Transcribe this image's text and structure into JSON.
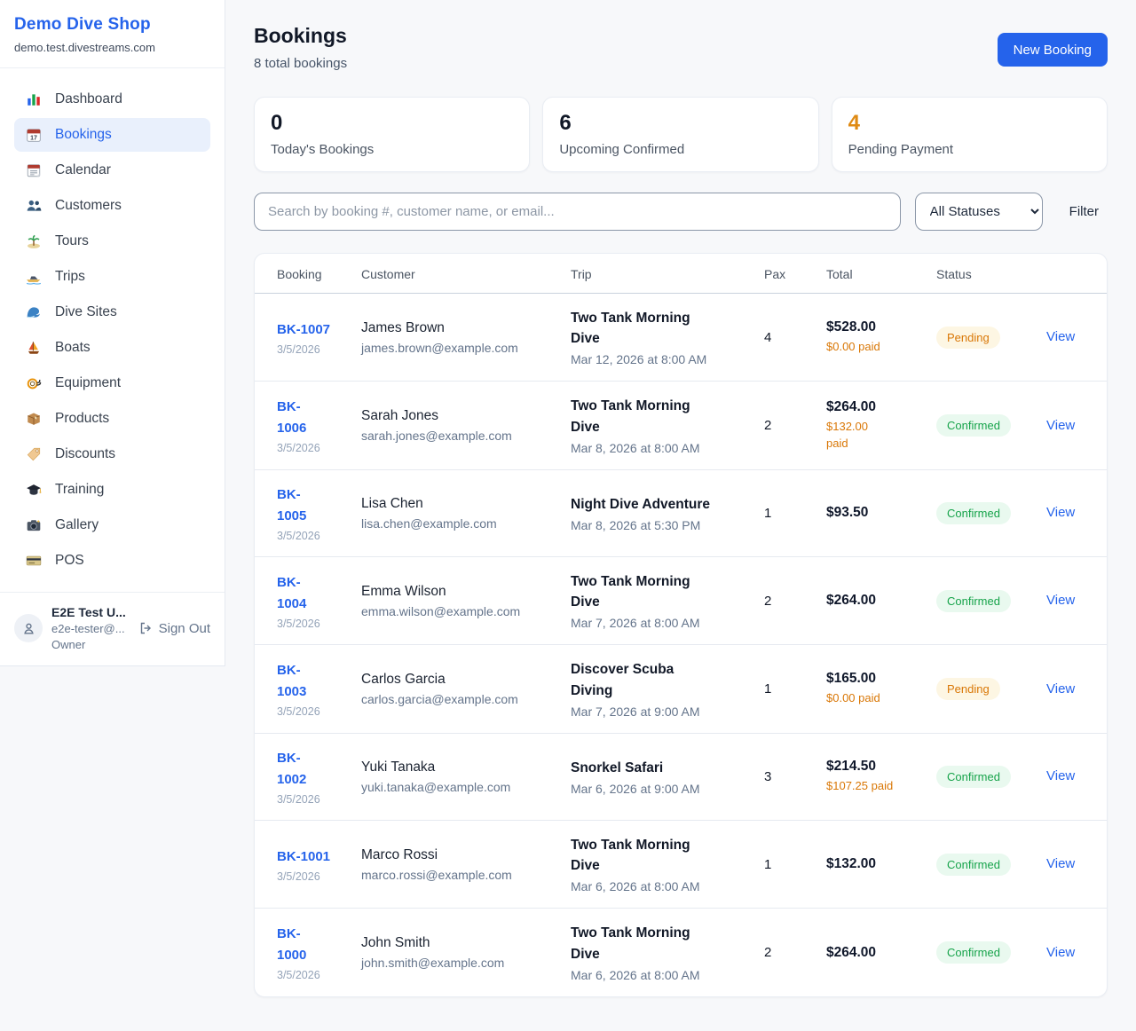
{
  "colors": {
    "accent_blue": "#2563eb",
    "pending_text": "#d97706",
    "pending_bg": "#fdf6e3",
    "confirmed_text": "#16a34a",
    "confirmed_bg": "#e9f9ef",
    "stat_highlight_orange": "#df8a13"
  },
  "sidebar": {
    "brand": "Demo Dive Shop",
    "domain": "demo.test.divestreams.com",
    "items": [
      {
        "label": "Dashboard",
        "icon": "bar-chart-icon",
        "active": false
      },
      {
        "label": "Bookings",
        "icon": "calendar-icon",
        "active": true
      },
      {
        "label": "Calendar",
        "icon": "tear-off-calendar-icon",
        "active": false
      },
      {
        "label": "Customers",
        "icon": "people-icon",
        "active": false
      },
      {
        "label": "Tours",
        "icon": "island-icon",
        "active": false
      },
      {
        "label": "Trips",
        "icon": "speedboat-icon",
        "active": false
      },
      {
        "label": "Dive Sites",
        "icon": "wave-icon",
        "active": false
      },
      {
        "label": "Boats",
        "icon": "sailboat-icon",
        "active": false
      },
      {
        "label": "Equipment",
        "icon": "diving-mask-icon",
        "active": false
      },
      {
        "label": "Products",
        "icon": "package-icon",
        "active": false
      },
      {
        "label": "Discounts",
        "icon": "tag-icon",
        "active": false
      },
      {
        "label": "Training",
        "icon": "graduation-cap-icon",
        "active": false
      },
      {
        "label": "Gallery",
        "icon": "camera-icon",
        "active": false
      },
      {
        "label": "POS",
        "icon": "credit-card-icon",
        "active": false
      }
    ],
    "user": {
      "name": "E2E Test U...",
      "email": "e2e-tester@...",
      "role": "Owner",
      "sign_out_label": "Sign Out"
    }
  },
  "header": {
    "title": "Bookings",
    "subtitle": "8 total bookings",
    "new_booking_label": "New Booking"
  },
  "stats": [
    {
      "value": "0",
      "label": "Today's Bookings",
      "value_color": "#111827"
    },
    {
      "value": "6",
      "label": "Upcoming Confirmed",
      "value_color": "#111827"
    },
    {
      "value": "4",
      "label": "Pending Payment",
      "value_color": "#df8a13"
    }
  ],
  "toolbar": {
    "search_placeholder": "Search by booking #, customer name, or email...",
    "status_filter_value": "All Statuses",
    "filter_label": "Filter"
  },
  "table": {
    "columns": [
      "Booking",
      "Customer",
      "Trip",
      "Pax",
      "Total",
      "Status",
      ""
    ],
    "rows": [
      {
        "id_lines": [
          "BK-1007"
        ],
        "date": "3/5/2026",
        "customer_name": "James Brown",
        "customer_email": "james.brown@example.com",
        "trip_lines": [
          "Two Tank Morning",
          "Dive"
        ],
        "trip_datetime": "Mar 12, 2026 at 8:00 AM",
        "pax": "4",
        "total": "$528.00",
        "paid_lines": [
          "$0.00 paid"
        ],
        "status": "Pending",
        "status_type": "pending",
        "action_label": "View"
      },
      {
        "id_lines": [
          "BK-",
          "1006"
        ],
        "date": "3/5/2026",
        "customer_name": "Sarah Jones",
        "customer_email": "sarah.jones@example.com",
        "trip_lines": [
          "Two Tank Morning",
          "Dive"
        ],
        "trip_datetime": "Mar 8, 2026 at 8:00 AM",
        "pax": "2",
        "total": "$264.00",
        "paid_lines": [
          "$132.00",
          "paid"
        ],
        "status": "Confirmed",
        "status_type": "confirmed",
        "action_label": "View"
      },
      {
        "id_lines": [
          "BK-",
          "1005"
        ],
        "date": "3/5/2026",
        "customer_name": "Lisa Chen",
        "customer_email": "lisa.chen@example.com",
        "trip_lines": [
          "Night Dive Adventure"
        ],
        "trip_datetime": "Mar 8, 2026 at 5:30 PM",
        "pax": "1",
        "total": "$93.50",
        "paid_lines": [],
        "status": "Confirmed",
        "status_type": "confirmed",
        "action_label": "View"
      },
      {
        "id_lines": [
          "BK-",
          "1004"
        ],
        "date": "3/5/2026",
        "customer_name": "Emma Wilson",
        "customer_email": "emma.wilson@example.com",
        "trip_lines": [
          "Two Tank Morning",
          "Dive"
        ],
        "trip_datetime": "Mar 7, 2026 at 8:00 AM",
        "pax": "2",
        "total": "$264.00",
        "paid_lines": [],
        "status": "Confirmed",
        "status_type": "confirmed",
        "action_label": "View"
      },
      {
        "id_lines": [
          "BK-",
          "1003"
        ],
        "date": "3/5/2026",
        "customer_name": "Carlos Garcia",
        "customer_email": "carlos.garcia@example.com",
        "trip_lines": [
          "Discover Scuba",
          "Diving"
        ],
        "trip_datetime": "Mar 7, 2026 at 9:00 AM",
        "pax": "1",
        "total": "$165.00",
        "paid_lines": [
          "$0.00 paid"
        ],
        "status": "Pending",
        "status_type": "pending",
        "action_label": "View"
      },
      {
        "id_lines": [
          "BK-",
          "1002"
        ],
        "date": "3/5/2026",
        "customer_name": "Yuki Tanaka",
        "customer_email": "yuki.tanaka@example.com",
        "trip_lines": [
          "Snorkel Safari"
        ],
        "trip_datetime": "Mar 6, 2026 at 9:00 AM",
        "pax": "3",
        "total": "$214.50",
        "paid_lines": [
          "$107.25 paid"
        ],
        "status": "Confirmed",
        "status_type": "confirmed",
        "action_label": "View"
      },
      {
        "id_lines": [
          "BK-1001"
        ],
        "date": "3/5/2026",
        "customer_name": "Marco Rossi",
        "customer_email": "marco.rossi@example.com",
        "trip_lines": [
          "Two Tank Morning",
          "Dive"
        ],
        "trip_datetime": "Mar 6, 2026 at 8:00 AM",
        "pax": "1",
        "total": "$132.00",
        "paid_lines": [],
        "status": "Confirmed",
        "status_type": "confirmed",
        "action_label": "View"
      },
      {
        "id_lines": [
          "BK-",
          "1000"
        ],
        "date": "3/5/2026",
        "customer_name": "John Smith",
        "customer_email": "john.smith@example.com",
        "trip_lines": [
          "Two Tank Morning",
          "Dive"
        ],
        "trip_datetime": "Mar 6, 2026 at 8:00 AM",
        "pax": "2",
        "total": "$264.00",
        "paid_lines": [],
        "status": "Confirmed",
        "status_type": "confirmed",
        "action_label": "View"
      }
    ]
  }
}
